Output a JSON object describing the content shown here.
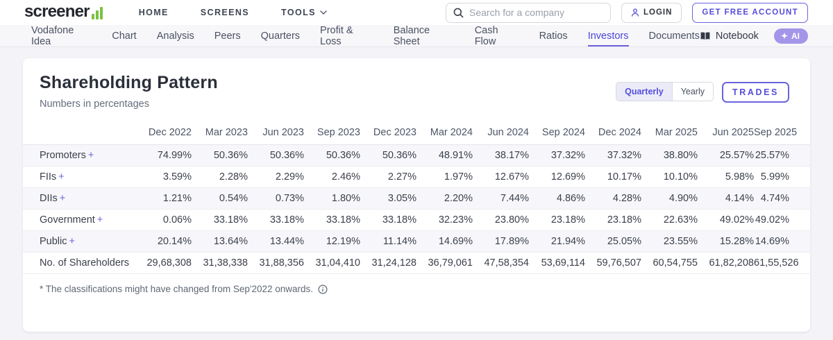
{
  "colors": {
    "accent": "#554ddb",
    "accent_border": "#6a63dd",
    "ai_pill": "#a495e9",
    "logo_green": "#7bc142"
  },
  "header": {
    "logo_text": "screener",
    "nav": [
      {
        "label": "HOME"
      },
      {
        "label": "SCREENS"
      },
      {
        "label": "TOOLS",
        "dropdown": true
      }
    ],
    "search_placeholder": "Search for a company",
    "login_label": "LOGIN",
    "signup_label": "GET FREE ACCOUNT"
  },
  "company_nav": {
    "items": [
      "Vodafone Idea",
      "Chart",
      "Analysis",
      "Peers",
      "Quarters",
      "Profit & Loss",
      "Balance Sheet",
      "Cash Flow",
      "Ratios",
      "Investors",
      "Documents"
    ],
    "active": "Investors",
    "notebook_label": "Notebook",
    "ai_label": "AI",
    "ai_sparkle": "✦"
  },
  "main": {
    "title": "Shareholding Pattern",
    "subtitle": "Numbers in percentages",
    "toggle": {
      "options": [
        "Quarterly",
        "Yearly"
      ],
      "active": "Quarterly"
    },
    "trades_label": "TRADES",
    "footnote": "* The classifications might have changed from Sep'2022 onwards.",
    "table": {
      "expand_symbol": "+",
      "columns": [
        "Dec 2022",
        "Mar 2023",
        "Jun 2023",
        "Sep 2023",
        "Dec 2023",
        "Mar 2024",
        "Jun 2024",
        "Sep 2024",
        "Dec 2024",
        "Mar 2025",
        "Jun 2025",
        "Sep 2025"
      ],
      "rows": [
        {
          "label": "Promoters",
          "expandable": true,
          "values": [
            "74.99%",
            "50.36%",
            "50.36%",
            "50.36%",
            "50.36%",
            "48.91%",
            "38.17%",
            "37.32%",
            "37.32%",
            "38.80%",
            "25.57%",
            "25.57%"
          ]
        },
        {
          "label": "FIIs",
          "expandable": true,
          "values": [
            "3.59%",
            "2.28%",
            "2.29%",
            "2.46%",
            "2.27%",
            "1.97%",
            "12.67%",
            "12.69%",
            "10.17%",
            "10.10%",
            "5.98%",
            "5.99%"
          ]
        },
        {
          "label": "DIIs",
          "expandable": true,
          "values": [
            "1.21%",
            "0.54%",
            "0.73%",
            "1.80%",
            "3.05%",
            "2.20%",
            "7.44%",
            "4.86%",
            "4.28%",
            "4.90%",
            "4.14%",
            "4.74%"
          ]
        },
        {
          "label": "Government",
          "expandable": true,
          "values": [
            "0.06%",
            "33.18%",
            "33.18%",
            "33.18%",
            "33.18%",
            "32.23%",
            "23.80%",
            "23.18%",
            "23.18%",
            "22.63%",
            "49.02%",
            "49.02%"
          ]
        },
        {
          "label": "Public",
          "expandable": true,
          "values": [
            "20.14%",
            "13.64%",
            "13.44%",
            "12.19%",
            "11.14%",
            "14.69%",
            "17.89%",
            "21.94%",
            "25.05%",
            "23.55%",
            "15.28%",
            "14.69%"
          ]
        },
        {
          "label": "No. of Shareholders",
          "expandable": false,
          "values": [
            "29,68,308",
            "31,38,338",
            "31,88,356",
            "31,04,410",
            "31,24,128",
            "36,79,061",
            "47,58,354",
            "53,69,114",
            "59,76,507",
            "60,54,755",
            "61,82,208",
            "61,55,526"
          ]
        }
      ]
    }
  }
}
